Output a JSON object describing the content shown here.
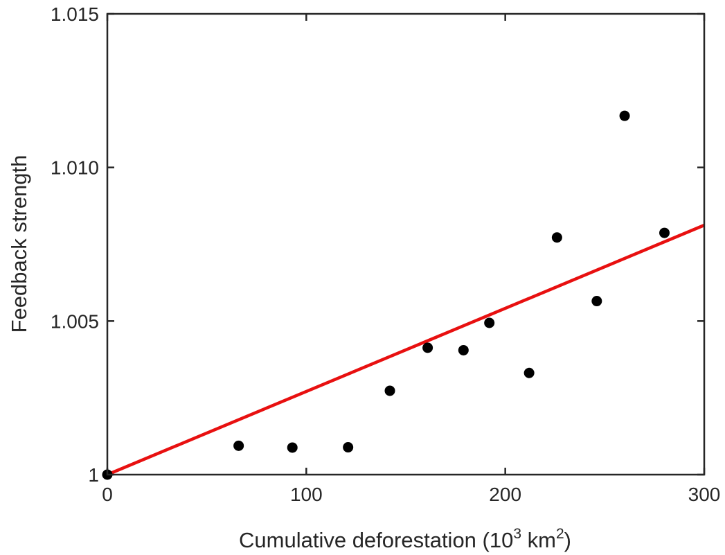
{
  "chart_data": {
    "type": "scatter",
    "xlabel": "Cumulative deforestation (10",
    "xlabel_exp1": "3",
    "xlabel_mid": " km",
    "xlabel_exp2": "2",
    "xlabel_end": ")",
    "ylabel": "Feedback strength",
    "xlim": [
      0,
      300
    ],
    "ylim": [
      1.0,
      1.015
    ],
    "xticks": [
      0,
      100,
      200,
      300
    ],
    "xtick_labels": [
      "0",
      "100",
      "200",
      "300"
    ],
    "yticks": [
      1.0,
      1.005,
      1.01,
      1.015
    ],
    "ytick_labels": [
      "1",
      "1.005",
      "1.010",
      "1.015"
    ],
    "grid": false,
    "points": [
      {
        "x": 0,
        "y": 1.0
      },
      {
        "x": 66,
        "y": 1.00094
      },
      {
        "x": 93,
        "y": 1.00088
      },
      {
        "x": 121,
        "y": 1.00089
      },
      {
        "x": 142,
        "y": 1.00273
      },
      {
        "x": 161,
        "y": 1.00413
      },
      {
        "x": 179,
        "y": 1.00405
      },
      {
        "x": 192,
        "y": 1.00494
      },
      {
        "x": 212,
        "y": 1.00331
      },
      {
        "x": 226,
        "y": 1.00772
      },
      {
        "x": 246,
        "y": 1.00565
      },
      {
        "x": 260,
        "y": 1.01168
      },
      {
        "x": 280,
        "y": 1.00787
      }
    ],
    "fit_line": {
      "x": [
        0,
        300
      ],
      "y": [
        1.0,
        1.00812
      ]
    },
    "colors": {
      "points": "#000000",
      "fit_line": "#e81010",
      "axes": "#262626"
    }
  }
}
